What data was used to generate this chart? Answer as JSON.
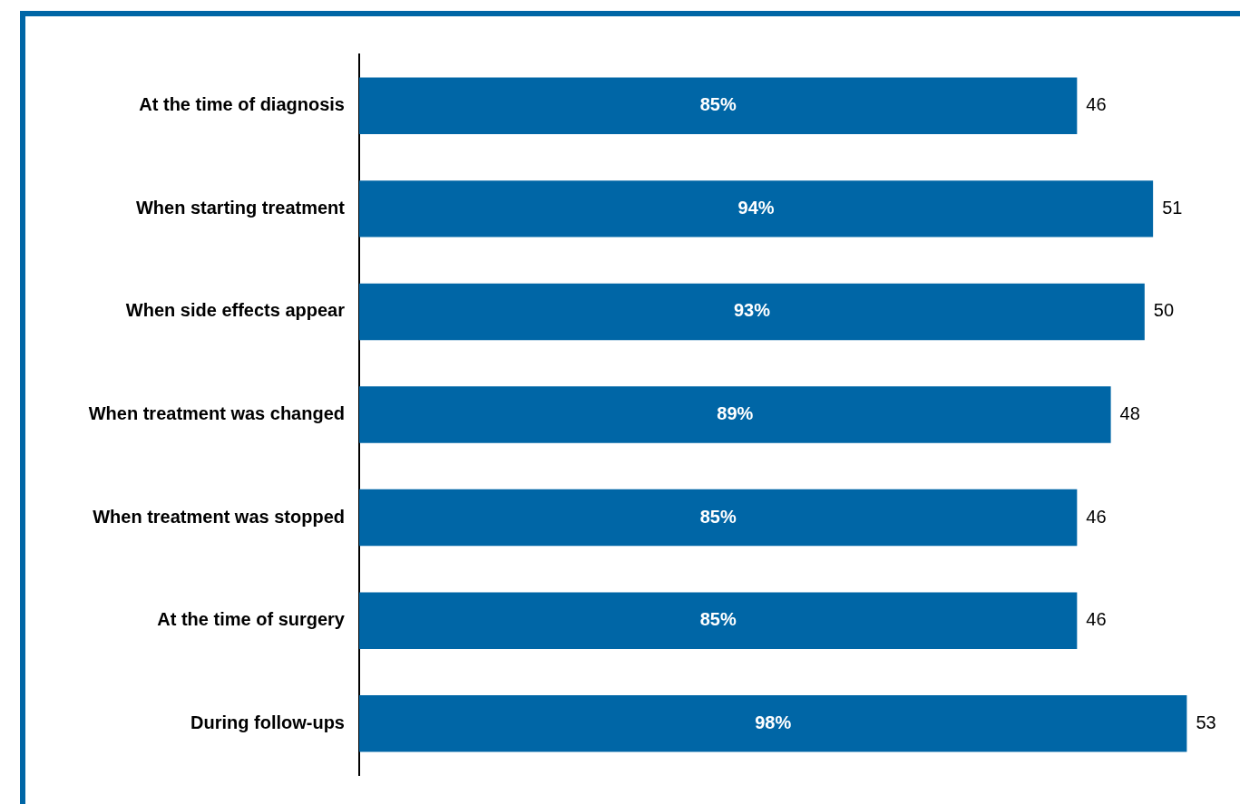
{
  "chart_data": {
    "type": "bar",
    "orientation": "horizontal",
    "categories": [
      "At the time of diagnosis",
      "When starting treatment",
      "When side effects appear",
      "When treatment was changed",
      "When treatment was stopped",
      "At the time of surgery",
      "During follow-ups"
    ],
    "values": [
      85,
      94,
      93,
      89,
      85,
      85,
      98
    ],
    "value_labels": [
      "85%",
      "94%",
      "93%",
      "89%",
      "85%",
      "85%",
      "98%"
    ],
    "color": "#0066a6",
    "annotations": [
      {
        "text": "46",
        "x": 85,
        "y": "At the time of diagnosis"
      },
      {
        "text": "51",
        "x": 94,
        "y": "When starting treatment"
      },
      {
        "text": "50",
        "x": 93,
        "y": "When side effects appear"
      },
      {
        "text": "48",
        "x": 89,
        "y": "When treatment was changed"
      },
      {
        "text": "46",
        "x": 85,
        "y": "When treatment was stopped"
      },
      {
        "text": "46",
        "x": 85,
        "y": "At the time of surgery"
      },
      {
        "text": "53",
        "x": 98,
        "y": "During follow-ups"
      }
    ]
  }
}
